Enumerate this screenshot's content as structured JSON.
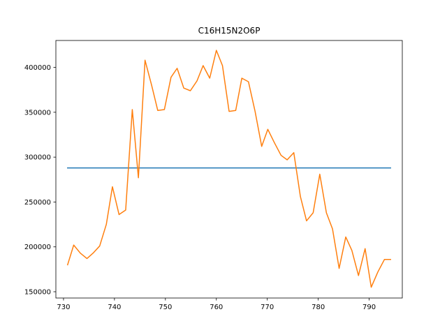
{
  "chart_data": {
    "type": "line",
    "title": "C16H15N2O6P",
    "xlabel": "",
    "ylabel": "",
    "xlim": [
      728.5,
      796.5
    ],
    "ylim": [
      143000,
      430000
    ],
    "xticks": [
      730,
      740,
      750,
      760,
      770,
      780,
      790
    ],
    "yticks": [
      150000,
      200000,
      250000,
      300000,
      350000,
      400000
    ],
    "grid": false,
    "series": [
      {
        "color": "#1f77b4",
        "x": [
          730.8,
          794.2
        ],
        "y": [
          288000,
          288000
        ]
      },
      {
        "color": "#ff7f0e",
        "x": [
          730.8,
          732.0,
          733.3,
          734.6,
          735.8,
          737.1,
          738.4,
          739.6,
          740.9,
          742.2,
          743.5,
          744.7,
          746.0,
          747.3,
          748.5,
          749.8,
          751.1,
          752.3,
          753.6,
          754.9,
          756.2,
          757.4,
          758.7,
          760.0,
          761.2,
          762.5,
          763.8,
          765.0,
          766.3,
          767.6,
          768.9,
          770.1,
          771.4,
          772.7,
          773.9,
          775.2,
          776.5,
          777.7,
          779.0,
          780.3,
          781.6,
          782.8,
          784.1,
          785.4,
          786.6,
          787.9,
          789.2,
          790.4,
          791.7,
          793.0,
          794.2
        ],
        "y": [
          180000,
          202000,
          193000,
          187000,
          193000,
          201000,
          225000,
          267000,
          236000,
          241000,
          353000,
          277000,
          408000,
          380000,
          352000,
          353000,
          389000,
          399000,
          377000,
          374000,
          385000,
          402000,
          388000,
          419000,
          402000,
          351000,
          352000,
          388000,
          384000,
          351000,
          312000,
          331000,
          316000,
          302000,
          297000,
          305000,
          256000,
          229000,
          238000,
          281000,
          238000,
          220000,
          176000,
          211000,
          196000,
          168000,
          198000,
          155000,
          172000,
          186000,
          186000
        ]
      }
    ]
  }
}
